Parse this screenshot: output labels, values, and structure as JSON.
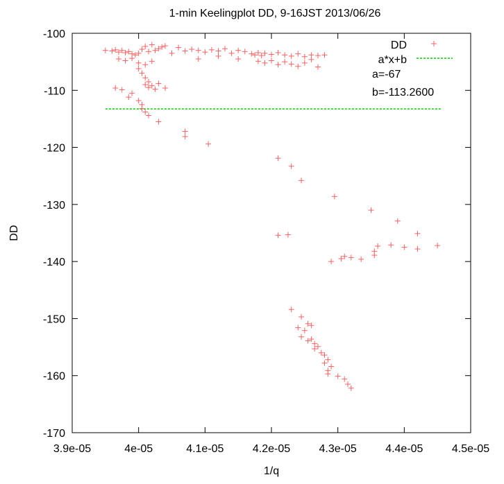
{
  "chart_data": {
    "type": "scatter",
    "title": "1-min Keelingplot DD, 9-16JST 2013/06/26",
    "xlabel": "1/q",
    "ylabel": "DD",
    "xlim": [
      3.9e-05,
      4.5e-05
    ],
    "ylim": [
      -170,
      -100
    ],
    "xticks": [
      "3.9e-05",
      "4e-05",
      "4.1e-05",
      "4.2e-05",
      "4.3e-05",
      "4.4e-05",
      "4.5e-05"
    ],
    "xtick_values": [
      3.9e-05,
      4e-05,
      4.1e-05,
      4.2e-05,
      4.3e-05,
      4.4e-05,
      4.5e-05
    ],
    "yticks": [
      "-100",
      "-110",
      "-120",
      "-130",
      "-140",
      "-150",
      "-160",
      "-170"
    ],
    "ytick_values": [
      -100,
      -110,
      -120,
      -130,
      -140,
      -150,
      -160,
      -170
    ],
    "grid": false,
    "legend_position": "top-right",
    "legend": [
      {
        "label": "DD",
        "marker": "plus",
        "color": "#ff6060"
      },
      {
        "label": "a*x+b",
        "marker": "dashed-line",
        "color": "#00cc00"
      }
    ],
    "annotations": [
      "a=-67",
      "b=-113.2600"
    ],
    "fit_line": {
      "x_range": [
        3.95e-05,
        4.455e-05
      ],
      "y": -113.26,
      "color": "#00cc00"
    },
    "series": [
      {
        "name": "DD",
        "color": "#ff6060",
        "points": [
          [
            3.95e-05,
            -103.0
          ],
          [
            3.96e-05,
            -103.1
          ],
          [
            3.965e-05,
            -102.9
          ],
          [
            3.97e-05,
            -103.3
          ],
          [
            3.975e-05,
            -103.0
          ],
          [
            3.98e-05,
            -103.4
          ],
          [
            3.985e-05,
            -103.2
          ],
          [
            3.99e-05,
            -103.6
          ],
          [
            3.995e-05,
            -103.8
          ],
          [
            4e-05,
            -103.5
          ],
          [
            4.005e-05,
            -102.8
          ],
          [
            4.01e-05,
            -102.3
          ],
          [
            4.015e-05,
            -103.2
          ],
          [
            4.02e-05,
            -102.0
          ],
          [
            4.025e-05,
            -103.0
          ],
          [
            4.03e-05,
            -102.7
          ],
          [
            4.035e-05,
            -102.4
          ],
          [
            4.04e-05,
            -102.2
          ],
          [
            4.05e-05,
            -103.5
          ],
          [
            4.06e-05,
            -102.5
          ],
          [
            4.07e-05,
            -103.1
          ],
          [
            4.08e-05,
            -102.8
          ],
          [
            4.09e-05,
            -103.0
          ],
          [
            4.1e-05,
            -103.3
          ],
          [
            4.11e-05,
            -102.9
          ],
          [
            4.12e-05,
            -103.1
          ],
          [
            4.13e-05,
            -102.7
          ],
          [
            4.14e-05,
            -103.5
          ],
          [
            4.15e-05,
            -103.0
          ],
          [
            4.16e-05,
            -103.2
          ],
          [
            4.17e-05,
            -103.6
          ],
          [
            4.175e-05,
            -103.8
          ],
          [
            4.18e-05,
            -103.4
          ],
          [
            4.185e-05,
            -103.9
          ],
          [
            4.19e-05,
            -103.5
          ],
          [
            4.2e-05,
            -103.7
          ],
          [
            4.21e-05,
            -103.4
          ],
          [
            4.22e-05,
            -103.8
          ],
          [
            4.23e-05,
            -104.0
          ],
          [
            4.24e-05,
            -103.6
          ],
          [
            4.25e-05,
            -104.1
          ],
          [
            4.26e-05,
            -103.8
          ],
          [
            4.27e-05,
            -103.9
          ],
          [
            4.28e-05,
            -103.8
          ],
          [
            3.97e-05,
            -104.5
          ],
          [
            3.98e-05,
            -104.8
          ],
          [
            3.99e-05,
            -104.4
          ],
          [
            4e-05,
            -105.2
          ],
          [
            4.01e-05,
            -105.5
          ],
          [
            4.02e-05,
            -104.9
          ],
          [
            4.09e-05,
            -104.5
          ],
          [
            4.12e-05,
            -104.0
          ],
          [
            4.15e-05,
            -104.5
          ],
          [
            4.18e-05,
            -104.9
          ],
          [
            4.19e-05,
            -105.2
          ],
          [
            4.2e-05,
            -104.8
          ],
          [
            4.21e-05,
            -105.5
          ],
          [
            4.22e-05,
            -105.0
          ],
          [
            4.23e-05,
            -105.4
          ],
          [
            4.24e-05,
            -105.8
          ],
          [
            4.25e-05,
            -105.2
          ],
          [
            4.26e-05,
            -104.6
          ],
          [
            4.27e-05,
            -105.9
          ],
          [
            4e-05,
            -106.2
          ],
          [
            4.005e-05,
            -107.0
          ],
          [
            4.01e-05,
            -107.8
          ],
          [
            4.015e-05,
            -108.5
          ],
          [
            4.01e-05,
            -109.0
          ],
          [
            4.015e-05,
            -109.5
          ],
          [
            4.02e-05,
            -109.2
          ],
          [
            4.025e-05,
            -109.8
          ],
          [
            4.03e-05,
            -108.8
          ],
          [
            4.04e-05,
            -109.6
          ],
          [
            3.975e-05,
            -109.9
          ],
          [
            3.965e-05,
            -109.6
          ],
          [
            3.985e-05,
            -111.2
          ],
          [
            3.99e-05,
            -110.5
          ],
          [
            4e-05,
            -111.8
          ],
          [
            4.005e-05,
            -112.5
          ],
          [
            4.005e-05,
            -113.2
          ],
          [
            4.01e-05,
            -113.8
          ],
          [
            4.015e-05,
            -114.4
          ],
          [
            4.03e-05,
            -115.5
          ],
          [
            4.07e-05,
            -117.2
          ],
          [
            4.07e-05,
            -118.1
          ],
          [
            4.105e-05,
            -119.4
          ],
          [
            4.21e-05,
            -121.9
          ],
          [
            4.23e-05,
            -123.3
          ],
          [
            4.245e-05,
            -125.8
          ],
          [
            4.295e-05,
            -128.6
          ],
          [
            4.35e-05,
            -131.0
          ],
          [
            4.39e-05,
            -132.9
          ],
          [
            4.42e-05,
            -135.1
          ],
          [
            4.21e-05,
            -135.4
          ],
          [
            4.225e-05,
            -135.3
          ],
          [
            4.45e-05,
            -137.2
          ],
          [
            4.42e-05,
            -137.8
          ],
          [
            4.4e-05,
            -137.5
          ],
          [
            4.38e-05,
            -137.1
          ],
          [
            4.36e-05,
            -137.3
          ],
          [
            4.355e-05,
            -138.2
          ],
          [
            4.355e-05,
            -138.9
          ],
          [
            4.335e-05,
            -139.6
          ],
          [
            4.32e-05,
            -139.3
          ],
          [
            4.31e-05,
            -139.1
          ],
          [
            4.305e-05,
            -139.5
          ],
          [
            4.29e-05,
            -140.0
          ],
          [
            4.23e-05,
            -148.4
          ],
          [
            4.245e-05,
            -149.7
          ],
          [
            4.255e-05,
            -150.9
          ],
          [
            4.26e-05,
            -151.2
          ],
          [
            4.24e-05,
            -151.6
          ],
          [
            4.25e-05,
            -152.1
          ],
          [
            4.245e-05,
            -153.2
          ],
          [
            4.255e-05,
            -153.9
          ],
          [
            4.26e-05,
            -153.6
          ],
          [
            4.265e-05,
            -154.4
          ],
          [
            4.27e-05,
            -154.9
          ],
          [
            4.265e-05,
            -155.3
          ],
          [
            4.275e-05,
            -156.0
          ],
          [
            4.28e-05,
            -156.4
          ],
          [
            4.285e-05,
            -157.2
          ],
          [
            4.28e-05,
            -157.8
          ],
          [
            4.29e-05,
            -158.4
          ],
          [
            4.285e-05,
            -159.1
          ],
          [
            4.285e-05,
            -159.7
          ],
          [
            4.3e-05,
            -160.1
          ],
          [
            4.31e-05,
            -160.6
          ],
          [
            4.315e-05,
            -161.5
          ],
          [
            4.32e-05,
            -162.2
          ]
        ]
      }
    ]
  }
}
